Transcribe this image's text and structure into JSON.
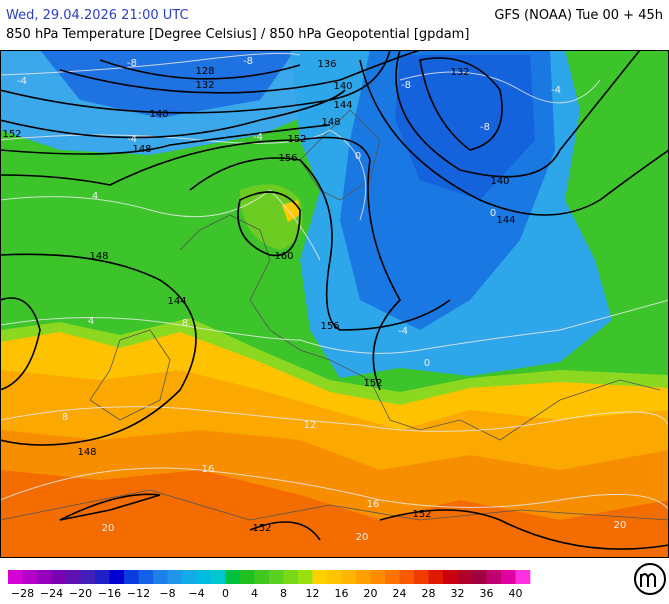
{
  "header": {
    "valid_time": "Wed, 29.04.2026 21:00 UTC",
    "model_run": "GFS (NOAA) Tue 00 + 45h",
    "parameter": "850 hPa Temperature [Degree Celsius] / 850 hPa Geopotential [gpdam]"
  },
  "map": {
    "geopotential_labels": [
      "128",
      "132",
      "136",
      "140",
      "132",
      "140",
      "144",
      "148",
      "148",
      "152",
      "152",
      "156",
      "140",
      "144",
      "148",
      "160",
      "144",
      "156",
      "152",
      "148",
      "152",
      "152"
    ],
    "temperature_labels": [
      "-8",
      "-8",
      "-4",
      "-8",
      "-8",
      "-4",
      "-4",
      "-4",
      "0",
      "4",
      "0",
      "4",
      "8",
      "-4",
      "0",
      "8",
      "12",
      "16",
      "16",
      "20",
      "20",
      "20"
    ]
  },
  "colorbar": {
    "labels": [
      "−28",
      "−24",
      "−20",
      "−16",
      "−12",
      "−8",
      "−4",
      "0",
      "4",
      "8",
      "12",
      "16",
      "20",
      "24",
      "28",
      "32",
      "36",
      "40"
    ],
    "colors": [
      "#d400d4",
      "#b400c8",
      "#9600bc",
      "#7a00b4",
      "#5e10b0",
      "#4020b8",
      "#2020c8",
      "#0000d0",
      "#0a3ce0",
      "#1460e6",
      "#1e80ea",
      "#1e96ea",
      "#14aae8",
      "#00bce0",
      "#00c8d0",
      "#00c040",
      "#20c020",
      "#40c820",
      "#5ad020",
      "#78d818",
      "#98e010",
      "#ffd000",
      "#ffc400",
      "#ffb400",
      "#ffa000",
      "#ff8c00",
      "#ff7400",
      "#f85a00",
      "#f03c00",
      "#e01800",
      "#c80010",
      "#b00028",
      "#a00040",
      "#c00070",
      "#e000a0",
      "#ff30e0"
    ]
  }
}
